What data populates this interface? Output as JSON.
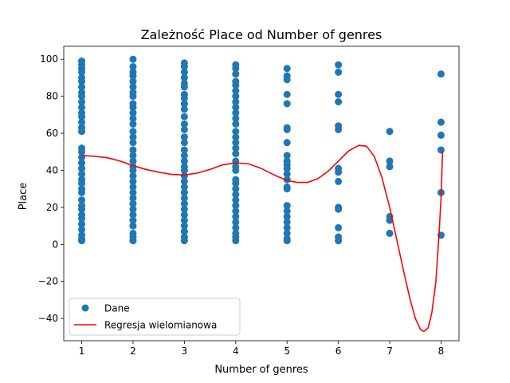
{
  "chart_data": {
    "type": "scatter",
    "title": "Zależność Place od Number of genres",
    "xlabel": "Number of genres",
    "ylabel": "Place",
    "xlim": [
      0.65,
      8.35
    ],
    "ylim": [
      -52,
      107
    ],
    "xticks": [
      1,
      2,
      3,
      4,
      5,
      6,
      7,
      8
    ],
    "yticks": [
      -40,
      -20,
      0,
      20,
      40,
      60,
      80,
      100
    ],
    "grid": false,
    "legend_position": "lower-left",
    "series": [
      {
        "name": "Dane",
        "kind": "scatter",
        "color": "#1f77b4",
        "points": [
          [
            1,
            99
          ],
          [
            1,
            97
          ],
          [
            1,
            95
          ],
          [
            1,
            93
          ],
          [
            1,
            90
          ],
          [
            1,
            88
          ],
          [
            1,
            85
          ],
          [
            1,
            82
          ],
          [
            1,
            80
          ],
          [
            1,
            77
          ],
          [
            1,
            74
          ],
          [
            1,
            71
          ],
          [
            1,
            69
          ],
          [
            1,
            66
          ],
          [
            1,
            63
          ],
          [
            1,
            61
          ],
          [
            1,
            52
          ],
          [
            1,
            50
          ],
          [
            1,
            47
          ],
          [
            1,
            44
          ],
          [
            1,
            41
          ],
          [
            1,
            38
          ],
          [
            1,
            35
          ],
          [
            1,
            33
          ],
          [
            1,
            30
          ],
          [
            1,
            28
          ],
          [
            1,
            24
          ],
          [
            1,
            21
          ],
          [
            1,
            19
          ],
          [
            1,
            16
          ],
          [
            1,
            14
          ],
          [
            1,
            11
          ],
          [
            1,
            8
          ],
          [
            1,
            5
          ],
          [
            1,
            3
          ],
          [
            1,
            2
          ],
          [
            2,
            100
          ],
          [
            2,
            96
          ],
          [
            2,
            93
          ],
          [
            2,
            91
          ],
          [
            2,
            88
          ],
          [
            2,
            85
          ],
          [
            2,
            82
          ],
          [
            2,
            80
          ],
          [
            2,
            76
          ],
          [
            2,
            74
          ],
          [
            2,
            71
          ],
          [
            2,
            68
          ],
          [
            2,
            65
          ],
          [
            2,
            61
          ],
          [
            2,
            58
          ],
          [
            2,
            55
          ],
          [
            2,
            51
          ],
          [
            2,
            48
          ],
          [
            2,
            45
          ],
          [
            2,
            42
          ],
          [
            2,
            40
          ],
          [
            2,
            37
          ],
          [
            2,
            34
          ],
          [
            2,
            31
          ],
          [
            2,
            28
          ],
          [
            2,
            25
          ],
          [
            2,
            22
          ],
          [
            2,
            19
          ],
          [
            2,
            16
          ],
          [
            2,
            13
          ],
          [
            2,
            10
          ],
          [
            2,
            6
          ],
          [
            2,
            4
          ],
          [
            2,
            2
          ],
          [
            3,
            98
          ],
          [
            3,
            96
          ],
          [
            3,
            93
          ],
          [
            3,
            90
          ],
          [
            3,
            87
          ],
          [
            3,
            85
          ],
          [
            3,
            81
          ],
          [
            3,
            79
          ],
          [
            3,
            76
          ],
          [
            3,
            73
          ],
          [
            3,
            69
          ],
          [
            3,
            65
          ],
          [
            3,
            62
          ],
          [
            3,
            58
          ],
          [
            3,
            55
          ],
          [
            3,
            51
          ],
          [
            3,
            48
          ],
          [
            3,
            45
          ],
          [
            3,
            42
          ],
          [
            3,
            40
          ],
          [
            3,
            37
          ],
          [
            3,
            34
          ],
          [
            3,
            31
          ],
          [
            3,
            28
          ],
          [
            3,
            25
          ],
          [
            3,
            22
          ],
          [
            3,
            19
          ],
          [
            3,
            16
          ],
          [
            3,
            13
          ],
          [
            3,
            10
          ],
          [
            3,
            7
          ],
          [
            3,
            4
          ],
          [
            3,
            2
          ],
          [
            4,
            97
          ],
          [
            4,
            95
          ],
          [
            4,
            92
          ],
          [
            4,
            88
          ],
          [
            4,
            86
          ],
          [
            4,
            83
          ],
          [
            4,
            80
          ],
          [
            4,
            77
          ],
          [
            4,
            74
          ],
          [
            4,
            71
          ],
          [
            4,
            68
          ],
          [
            4,
            65
          ],
          [
            4,
            61
          ],
          [
            4,
            58
          ],
          [
            4,
            55
          ],
          [
            4,
            52
          ],
          [
            4,
            49
          ],
          [
            4,
            45
          ],
          [
            4,
            42
          ],
          [
            4,
            40
          ],
          [
            4,
            35
          ],
          [
            4,
            33
          ],
          [
            4,
            30
          ],
          [
            4,
            27
          ],
          [
            4,
            24
          ],
          [
            4,
            21
          ],
          [
            4,
            18
          ],
          [
            4,
            15
          ],
          [
            4,
            12
          ],
          [
            4,
            9
          ],
          [
            4,
            6
          ],
          [
            4,
            4
          ],
          [
            4,
            2
          ],
          [
            5,
            95
          ],
          [
            5,
            91
          ],
          [
            5,
            89
          ],
          [
            5,
            81
          ],
          [
            5,
            76
          ],
          [
            5,
            63
          ],
          [
            5,
            62
          ],
          [
            5,
            55
          ],
          [
            5,
            48
          ],
          [
            5,
            45
          ],
          [
            5,
            43
          ],
          [
            5,
            41
          ],
          [
            5,
            38
          ],
          [
            5,
            35
          ],
          [
            5,
            31
          ],
          [
            5,
            30
          ],
          [
            5,
            21
          ],
          [
            5,
            18
          ],
          [
            5,
            15
          ],
          [
            5,
            12
          ],
          [
            5,
            9
          ],
          [
            5,
            6
          ],
          [
            5,
            3
          ],
          [
            5,
            2
          ],
          [
            6,
            97
          ],
          [
            6,
            93
          ],
          [
            6,
            81
          ],
          [
            6,
            77
          ],
          [
            6,
            64
          ],
          [
            6,
            62
          ],
          [
            6,
            41
          ],
          [
            6,
            39
          ],
          [
            6,
            34
          ],
          [
            6,
            20
          ],
          [
            6,
            19
          ],
          [
            6,
            9
          ],
          [
            6,
            4
          ],
          [
            6,
            2
          ],
          [
            7,
            61
          ],
          [
            7,
            45
          ],
          [
            7,
            42
          ],
          [
            7,
            15
          ],
          [
            7,
            13
          ],
          [
            7,
            6
          ],
          [
            8,
            92
          ],
          [
            8,
            66
          ],
          [
            8,
            59
          ],
          [
            8,
            51
          ],
          [
            8,
            28
          ],
          [
            8,
            5
          ]
        ]
      },
      {
        "name": "Regresja wielomianowa",
        "kind": "line",
        "color": "#ff0000",
        "points": [
          [
            1,
            48
          ],
          [
            1.25,
            47.6
          ],
          [
            1.5,
            46.8
          ],
          [
            1.75,
            45
          ],
          [
            2,
            42.5
          ],
          [
            2.25,
            40.5
          ],
          [
            2.5,
            39
          ],
          [
            2.75,
            37.8
          ],
          [
            3,
            37.5
          ],
          [
            3.25,
            38.5
          ],
          [
            3.5,
            40.5
          ],
          [
            3.75,
            43
          ],
          [
            4,
            44
          ],
          [
            4.25,
            43.5
          ],
          [
            4.5,
            41
          ],
          [
            4.75,
            37.5
          ],
          [
            5,
            34.5
          ],
          [
            5.2,
            33.5
          ],
          [
            5.4,
            33.5
          ],
          [
            5.6,
            35.5
          ],
          [
            5.8,
            39.5
          ],
          [
            6,
            45
          ],
          [
            6.2,
            50.5
          ],
          [
            6.4,
            53.5
          ],
          [
            6.55,
            53
          ],
          [
            6.7,
            47.5
          ],
          [
            6.85,
            36
          ],
          [
            7,
            20
          ],
          [
            7.15,
            1
          ],
          [
            7.3,
            -18
          ],
          [
            7.4,
            -30
          ],
          [
            7.5,
            -40
          ],
          [
            7.6,
            -46
          ],
          [
            7.67,
            -47
          ],
          [
            7.75,
            -45
          ],
          [
            7.82,
            -37
          ],
          [
            7.9,
            -20
          ],
          [
            7.96,
            5
          ],
          [
            8,
            25
          ],
          [
            8.03,
            50
          ]
        ]
      }
    ]
  }
}
